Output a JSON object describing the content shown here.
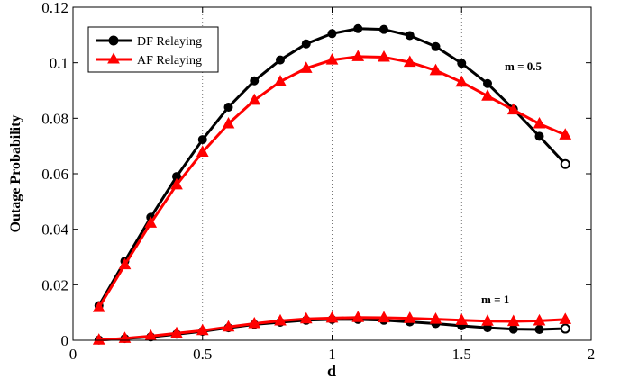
{
  "chart_data": {
    "type": "line",
    "xlabel": "d",
    "ylabel": "Outage Probability",
    "xlim": [
      0,
      2
    ],
    "ylim": [
      0,
      0.12
    ],
    "xticks": [
      "0",
      "0.5",
      "1",
      "1.5",
      "2"
    ],
    "yticks": [
      "0",
      "0.02",
      "0.04",
      "0.06",
      "0.08",
      "0.1",
      "0.12"
    ],
    "grid": "vertical dotted",
    "legend_position": "top-left",
    "x": [
      0.1,
      0.2,
      0.3,
      0.4,
      0.5,
      0.6,
      0.7,
      0.8,
      0.9,
      1.0,
      1.1,
      1.2,
      1.3,
      1.4,
      1.5,
      1.6,
      1.7,
      1.8,
      1.9
    ],
    "series": [
      {
        "name": "DF Relaying",
        "group": "m = 0.5",
        "color": "#000000",
        "marker": "circle",
        "values": [
          0.0125,
          0.0285,
          0.0443,
          0.059,
          0.0723,
          0.084,
          0.0935,
          0.101,
          0.1068,
          0.1105,
          0.1123,
          0.112,
          0.1098,
          0.1058,
          0.0998,
          0.0925,
          0.0833,
          0.0735,
          0.0635
        ]
      },
      {
        "name": "AF Relaying",
        "group": "m = 0.5",
        "color": "#ff0000",
        "marker": "triangle",
        "values": [
          0.0118,
          0.0272,
          0.0422,
          0.056,
          0.0678,
          0.078,
          0.0865,
          0.0932,
          0.098,
          0.101,
          0.1022,
          0.102,
          0.1002,
          0.0972,
          0.093,
          0.088,
          0.083,
          0.078,
          0.074
        ]
      },
      {
        "name": "DF Relaying",
        "group": "m = 1",
        "color": "#000000",
        "marker": "circle",
        "values": [
          0.0001,
          0.0006,
          0.0012,
          0.0022,
          0.0032,
          0.0045,
          0.0057,
          0.0065,
          0.0072,
          0.0075,
          0.0075,
          0.0072,
          0.0066,
          0.006,
          0.0052,
          0.0045,
          0.004,
          0.0039,
          0.0042
        ]
      },
      {
        "name": "AF Relaying",
        "group": "m = 1",
        "color": "#ff0000",
        "marker": "triangle",
        "values": [
          0.0001,
          0.0007,
          0.0015,
          0.0025,
          0.0035,
          0.0048,
          0.006,
          0.007,
          0.0077,
          0.008,
          0.0082,
          0.0081,
          0.0079,
          0.0076,
          0.0072,
          0.0069,
          0.0068,
          0.007,
          0.0075
        ]
      }
    ],
    "annotations": [
      "m = 0.5",
      "m = 1"
    ]
  }
}
